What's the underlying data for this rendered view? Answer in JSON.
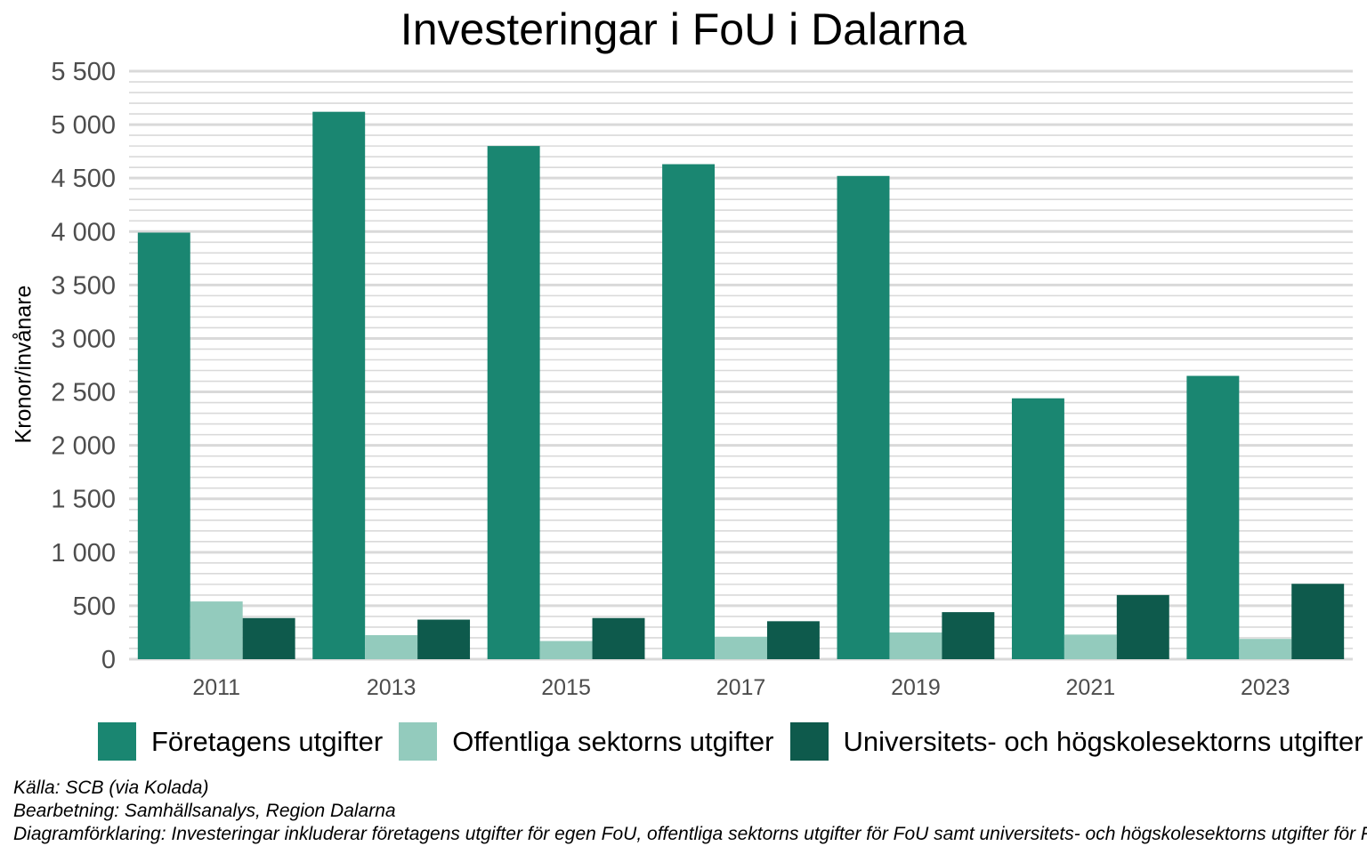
{
  "chart_data": {
    "type": "bar",
    "title": "Investeringar i FoU i Dalarna",
    "xlabel": "",
    "ylabel": "Kronor/invånare",
    "categories": [
      "2011",
      "2013",
      "2015",
      "2017",
      "2019",
      "2021",
      "2023"
    ],
    "series": [
      {
        "name": "Företagens utgifter",
        "color": "#1a8671",
        "values": [
          3990,
          5120,
          4800,
          4630,
          4520,
          2440,
          2650
        ]
      },
      {
        "name": "Offentliga sektorns utgifter",
        "color": "#93cbbd",
        "values": [
          540,
          225,
          170,
          210,
          250,
          230,
          190
        ]
      },
      {
        "name": "Universitets- och högskolesektorns utgifter",
        "color": "#0e5a4c",
        "values": [
          385,
          370,
          385,
          355,
          440,
          600,
          705
        ]
      }
    ],
    "ylim": [
      0,
      5500
    ],
    "yticks": [
      0,
      500,
      1000,
      1500,
      2000,
      2500,
      3000,
      3500,
      4000,
      4500,
      5000,
      5500
    ],
    "ytick_labels": [
      "0",
      "500",
      "1 000",
      "1 500",
      "2 000",
      "2 500",
      "3 000",
      "3 500",
      "4 000",
      "4 500",
      "5 000",
      "5 500"
    ],
    "grid": true,
    "legend_position": "bottom"
  },
  "captions": {
    "source": "Källa: SCB (via Kolada)",
    "processing": "Bearbetning: Samhällsanalys, Region Dalarna",
    "explanation": "Diagramförklaring: Investeringar inkluderar företagens utgifter för egen FoU, offentliga sektorns utgifter för FoU samt universitets- och högskolesektorns utgifter för FoU."
  }
}
